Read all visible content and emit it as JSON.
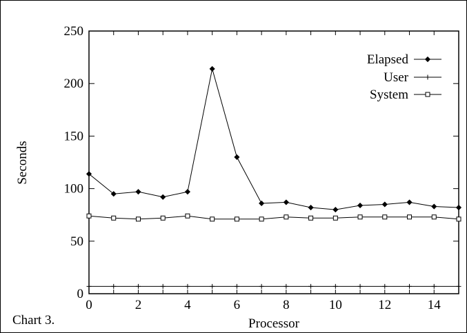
{
  "chart_data": {
    "type": "line",
    "caption": "Chart 3.",
    "xlabel": "Processor",
    "ylabel": "Seconds",
    "xlim": [
      0,
      15
    ],
    "ylim": [
      0,
      250
    ],
    "xticks": [
      0,
      2,
      4,
      6,
      8,
      10,
      12,
      14
    ],
    "yticks": [
      0,
      50,
      100,
      150,
      200,
      250
    ],
    "grid": false,
    "legend_position": "top-right",
    "x": [
      0,
      1,
      2,
      3,
      4,
      5,
      6,
      7,
      8,
      9,
      10,
      11,
      12,
      13,
      14,
      15
    ],
    "series": [
      {
        "name": "Elapsed",
        "marker": "diamond",
        "values": [
          114,
          95,
          97,
          92,
          97,
          214,
          130,
          86,
          87,
          82,
          80,
          84,
          85,
          87,
          83,
          82
        ]
      },
      {
        "name": "User",
        "marker": "plus",
        "values": [
          7,
          7,
          7,
          7,
          7,
          7,
          7,
          7,
          7,
          7,
          7,
          7,
          7,
          7,
          7,
          7
        ]
      },
      {
        "name": "System",
        "marker": "square",
        "values": [
          74,
          72,
          71,
          72,
          74,
          71,
          71,
          71,
          73,
          72,
          72,
          73,
          73,
          73,
          73,
          71
        ]
      }
    ]
  }
}
